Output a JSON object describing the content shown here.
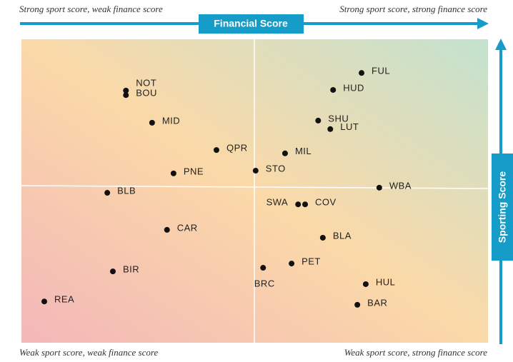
{
  "chart_data": {
    "type": "scatter",
    "x_label": "Financial Score",
    "y_label": "Sporting Score",
    "corner_labels": {
      "top_left": "Strong sport score, weak finance score",
      "top_right": "Strong sport score, strong finance score",
      "bottom_left": "Weak sport score, weak finance score",
      "bottom_right": "Weak sport score, strong finance score"
    },
    "xlim": [
      0,
      100
    ],
    "ylim": [
      0,
      100
    ],
    "color": "#111111",
    "series": [
      {
        "name": null,
        "labels": [
          "NOT",
          "BOU",
          "MID",
          "QPR",
          "PNE",
          "BLB",
          "CAR",
          "BIR",
          "REA",
          "FUL",
          "HUD",
          "SHU",
          "LUT",
          "MIL",
          "STO",
          "WBA",
          "SWA",
          "COV",
          "BLA",
          "PET",
          "BRC",
          "HUL",
          "BAR"
        ],
        "x": [
          22.4,
          22.4,
          28.0,
          41.8,
          32.6,
          18.4,
          31.2,
          19.6,
          4.9,
          72.9,
          66.8,
          63.6,
          66.2,
          56.5,
          50.2,
          76.7,
          59.3,
          60.8,
          64.6,
          57.9,
          51.8,
          73.8,
          72.0
        ],
        "values": [
          83.1,
          81.6,
          72.5,
          63.5,
          55.8,
          49.4,
          37.2,
          23.5,
          13.6,
          88.9,
          83.3,
          73.2,
          70.4,
          62.4,
          56.7,
          51.1,
          45.6,
          45.6,
          34.6,
          26.1,
          24.7,
          19.3,
          12.5
        ]
      }
    ]
  }
}
